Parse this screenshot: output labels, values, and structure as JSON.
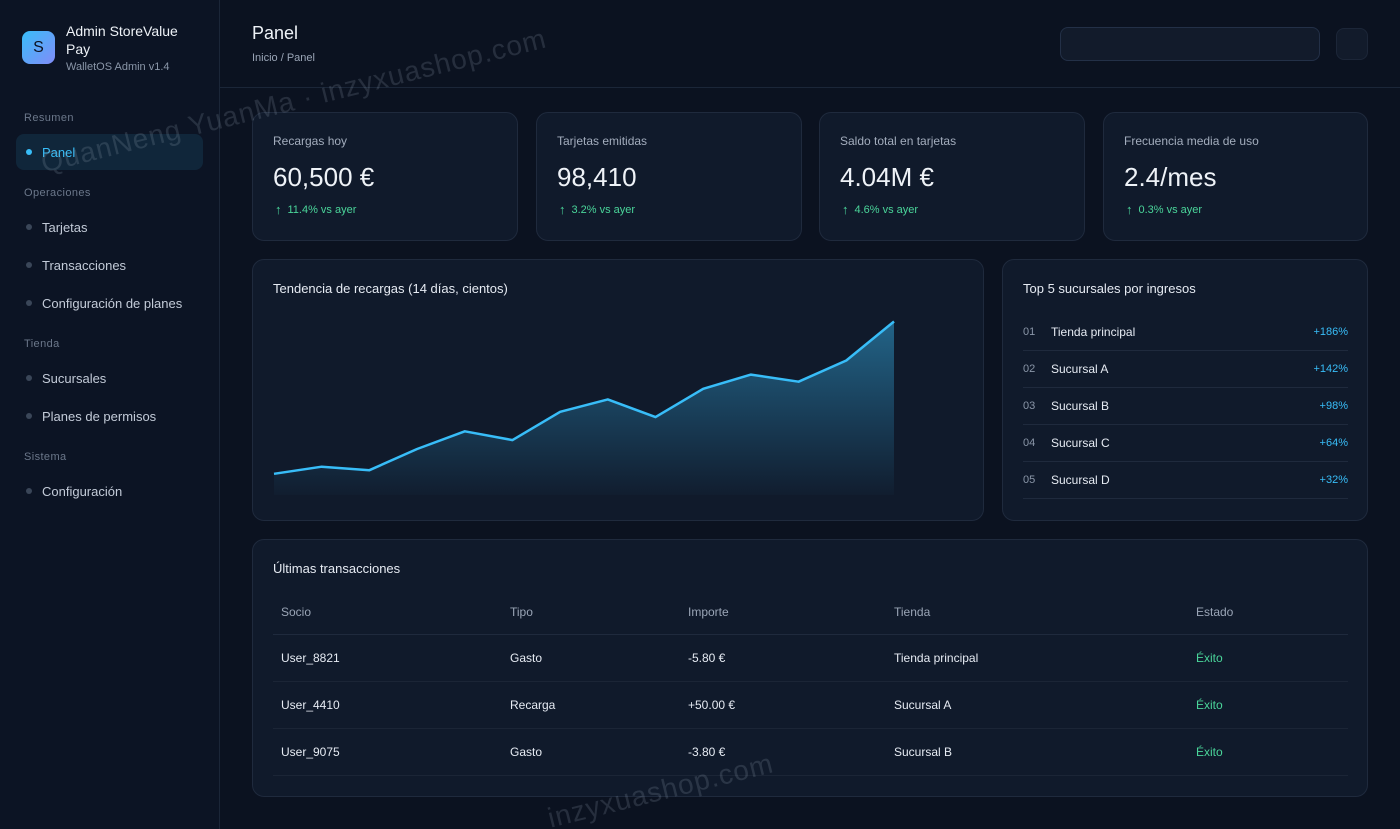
{
  "brand": {
    "logo_letter": "S",
    "name": "Admin StoreValue Pay",
    "subtitle": "WalletOS Admin v1.4"
  },
  "sidebar": {
    "sections": [
      {
        "title": "Resumen",
        "items": [
          {
            "label": "Panel",
            "active": true
          }
        ]
      },
      {
        "title": "Operaciones",
        "items": [
          {
            "label": "Tarjetas"
          },
          {
            "label": "Transacciones"
          },
          {
            "label": "Configuración de planes"
          }
        ]
      },
      {
        "title": "Tienda",
        "items": [
          {
            "label": "Sucursales"
          },
          {
            "label": "Planes de permisos"
          }
        ]
      },
      {
        "title": "Sistema",
        "items": [
          {
            "label": "Configuración"
          }
        ]
      }
    ]
  },
  "header": {
    "title": "Panel",
    "breadcrumb": "Inicio / Panel",
    "search_placeholder": ""
  },
  "stats": [
    {
      "label": "Recargas hoy",
      "value": "60,500 €",
      "trend": "11.4% vs ayer"
    },
    {
      "label": "Tarjetas emitidas",
      "value": "98,410",
      "trend": "3.2% vs ayer"
    },
    {
      "label": "Saldo total en tarjetas",
      "value": "4.04M €",
      "trend": "4.6% vs ayer"
    },
    {
      "label": "Frecuencia media de uso",
      "value": "2.4/mes",
      "trend": "0.3% vs ayer"
    }
  ],
  "trend_chart": {
    "title": "Tendencia de recargas (14 días, cientos)"
  },
  "chart_data": {
    "type": "area",
    "title": "Tendencia de recargas (14 días, cientos)",
    "x": [
      1,
      2,
      3,
      4,
      5,
      6,
      7,
      8,
      9,
      10,
      11,
      12,
      13,
      14
    ],
    "values": [
      12,
      16,
      14,
      26,
      36,
      31,
      47,
      54,
      44,
      60,
      68,
      64,
      76,
      98
    ],
    "ylim": [
      0,
      100
    ],
    "grid": false,
    "color": "#38bdf8"
  },
  "ranking": {
    "title": "Top 5 sucursales por ingresos",
    "rows": [
      {
        "no": "01",
        "name": "Tienda principal",
        "pct": "+186%"
      },
      {
        "no": "02",
        "name": "Sucursal A",
        "pct": "+142%"
      },
      {
        "no": "03",
        "name": "Sucursal B",
        "pct": "+98%"
      },
      {
        "no": "04",
        "name": "Sucursal C",
        "pct": "+64%"
      },
      {
        "no": "05",
        "name": "Sucursal D",
        "pct": "+32%"
      }
    ]
  },
  "transactions": {
    "title": "Últimas transacciones",
    "columns": [
      "Socio",
      "Tipo",
      "Importe",
      "Tienda",
      "Estado"
    ],
    "rows": [
      {
        "user": "User_8821",
        "type": "Gasto",
        "amount": "-5.80 €",
        "store": "Tienda principal",
        "status": "Éxito"
      },
      {
        "user": "User_4410",
        "type": "Recarga",
        "amount": "+50.00 €",
        "store": "Sucursal A",
        "status": "Éxito"
      },
      {
        "user": "User_9075",
        "type": "Gasto",
        "amount": "-3.80 €",
        "store": "Sucursal B",
        "status": "Éxito"
      }
    ]
  },
  "watermark": {
    "text_1": "QuanNeng YuanMa · inzyxuashop.com",
    "text_2": "inzyxuashop.com"
  },
  "colors": {
    "accent": "#38bdf8",
    "success": "#4ad59a",
    "background": "#0b1220"
  }
}
